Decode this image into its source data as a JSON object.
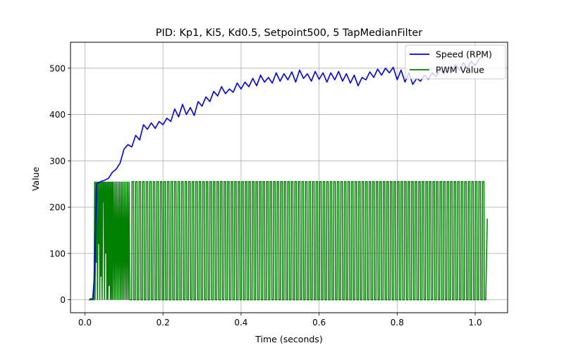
{
  "chart_data": {
    "type": "line",
    "title": "PID: Kp1, Ki5, Kd0.5, Setpoint500, 5 TapMedianFilter",
    "xlabel": "Time (seconds)",
    "ylabel": "Value",
    "xlim": [
      -0.037,
      1.083
    ],
    "ylim": [
      -28,
      556
    ],
    "x_ticks": [
      0.0,
      0.2,
      0.4,
      0.6,
      0.8,
      1.0
    ],
    "x_tick_labels": [
      "0.0",
      "0.2",
      "0.4",
      "0.6",
      "0.8",
      "1.0"
    ],
    "y_ticks": [
      0,
      100,
      200,
      300,
      400,
      500
    ],
    "y_tick_labels": [
      "0",
      "100",
      "200",
      "300",
      "400",
      "500"
    ],
    "grid": true,
    "legend_position": "top-right",
    "series": [
      {
        "name": "Speed (RPM)",
        "color": "#0000ee",
        "x": [
          0.012,
          0.02,
          0.025,
          0.03,
          0.04,
          0.05,
          0.06,
          0.07,
          0.08,
          0.09,
          0.1,
          0.11,
          0.12,
          0.13,
          0.14,
          0.15,
          0.16,
          0.17,
          0.18,
          0.19,
          0.2,
          0.21,
          0.22,
          0.23,
          0.24,
          0.25,
          0.26,
          0.27,
          0.28,
          0.29,
          0.3,
          0.31,
          0.32,
          0.33,
          0.34,
          0.35,
          0.36,
          0.37,
          0.38,
          0.39,
          0.4,
          0.41,
          0.42,
          0.43,
          0.44,
          0.45,
          0.46,
          0.47,
          0.48,
          0.49,
          0.5,
          0.51,
          0.52,
          0.53,
          0.54,
          0.55,
          0.56,
          0.57,
          0.58,
          0.59,
          0.6,
          0.61,
          0.62,
          0.63,
          0.64,
          0.65,
          0.66,
          0.67,
          0.68,
          0.69,
          0.7,
          0.71,
          0.72,
          0.73,
          0.74,
          0.75,
          0.76,
          0.77,
          0.78,
          0.79,
          0.8,
          0.81,
          0.82,
          0.83,
          0.84,
          0.85,
          0.86,
          0.87,
          0.88,
          0.89,
          0.9,
          0.91,
          0.92,
          0.93,
          0.94,
          0.95,
          0.96,
          0.97,
          0.98,
          0.99,
          1.0,
          1.01,
          1.02
        ],
        "values": [
          2,
          2,
          60,
          250,
          255,
          258,
          262,
          275,
          282,
          295,
          325,
          335,
          330,
          355,
          345,
          378,
          368,
          382,
          370,
          385,
          378,
          392,
          385,
          412,
          395,
          422,
          400,
          415,
          398,
          428,
          418,
          438,
          428,
          450,
          440,
          460,
          445,
          455,
          448,
          468,
          455,
          470,
          460,
          478,
          462,
          485,
          470,
          480,
          468,
          490,
          472,
          488,
          475,
          492,
          470,
          496,
          478,
          488,
          472,
          493,
          476,
          490,
          470,
          490,
          475,
          493,
          472,
          488,
          468,
          485,
          462,
          480,
          475,
          492,
          480,
          498,
          485,
          500,
          490,
          502,
          475,
          496,
          470,
          490,
          465,
          478,
          472,
          485,
          476,
          490,
          482,
          496,
          488,
          503,
          492,
          508,
          495,
          512,
          500,
          515,
          505,
          520,
          525
        ]
      },
      {
        "name": "PWM Value",
        "color": "#008000",
        "x": [
          0.01,
          0.02,
          0.023,
          0.025,
          0.026,
          0.028,
          0.029,
          0.031,
          0.032,
          0.034,
          0.035,
          0.037,
          0.038,
          0.04,
          0.041,
          0.043,
          0.044,
          0.046,
          0.047,
          0.049,
          0.05,
          0.052,
          0.053,
          0.055,
          0.056,
          0.058,
          0.059,
          0.061,
          0.062,
          0.064,
          0.065,
          0.067,
          0.068,
          0.07,
          0.071,
          0.073,
          0.075,
          0.077,
          0.079,
          0.081,
          0.083,
          0.085,
          0.087,
          0.089,
          0.091,
          0.093,
          0.095,
          0.097,
          0.099,
          0.101,
          0.103,
          0.105,
          0.107,
          0.109,
          0.111,
          0.113,
          0.115,
          1.031
        ],
        "values": [
          0,
          0,
          0,
          255,
          0,
          255,
          80,
          255,
          0,
          255,
          120,
          255,
          0,
          255,
          50,
          255,
          0,
          255,
          210,
          255,
          0,
          255,
          100,
          255,
          0,
          255,
          0,
          255,
          30,
          255,
          0,
          255,
          0,
          255,
          0,
          255,
          0,
          255,
          0,
          255,
          0,
          255,
          0,
          255,
          0,
          255,
          0,
          255,
          0,
          255,
          0,
          255,
          0,
          255,
          0,
          255,
          0,
          175
        ],
        "square_wave_section": {
          "x_start": 0.12,
          "x_end": 1.027,
          "high": 255,
          "low": 0,
          "cycles": 100
        }
      }
    ]
  }
}
